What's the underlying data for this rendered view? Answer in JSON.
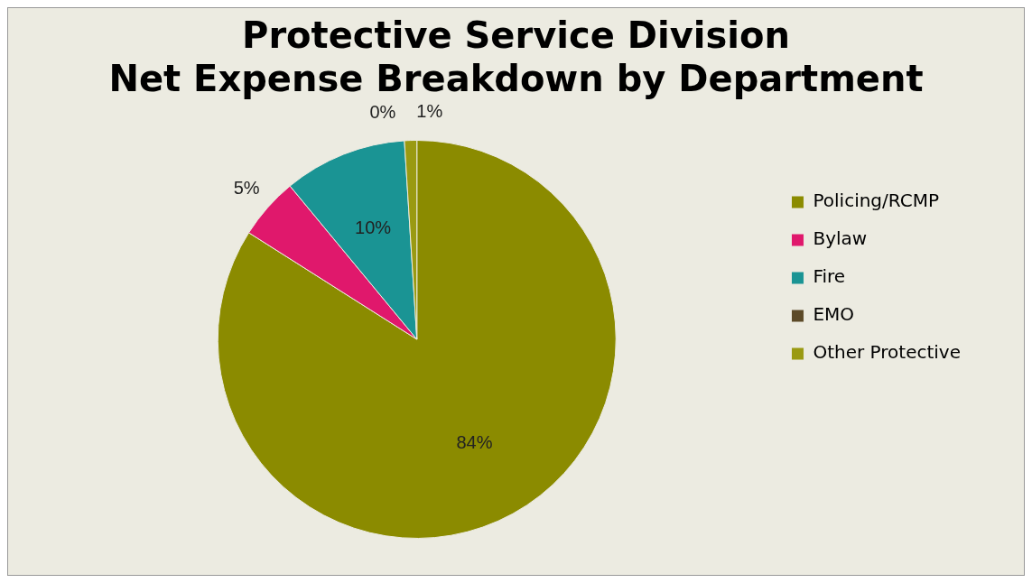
{
  "chart_data": {
    "type": "pie",
    "title": [
      "Protective Service Division",
      "Net Expense Breakdown by Department"
    ],
    "categories": [
      "Policing/RCMP",
      "Bylaw",
      "Fire",
      "EMO",
      "Other Protective"
    ],
    "values": [
      84,
      5,
      10,
      0,
      1
    ],
    "colors": [
      "#8b8b00",
      "#e0186c",
      "#1a9494",
      "#5c4a28",
      "#9a9a12"
    ],
    "value_labels": [
      "84%",
      "5%",
      "10%",
      "0%",
      "1%"
    ],
    "legend": "right"
  }
}
